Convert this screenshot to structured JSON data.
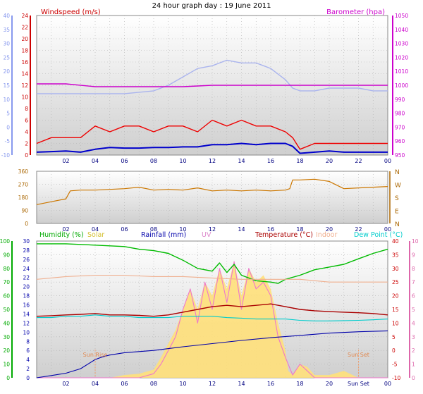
{
  "chart_data": {
    "title": "24 hour graph day : 19 June 2011",
    "x_ticks": [
      "02",
      "04",
      "06",
      "08",
      "10",
      "12",
      "14",
      "16",
      "18",
      "20",
      "22",
      "00"
    ],
    "x_ticks_bottom": [
      "02",
      "04",
      "06",
      "08",
      "10",
      "12",
      "14",
      "16",
      "18",
      "20",
      "Sun Set",
      "00"
    ],
    "x_range_hours": [
      0,
      24
    ],
    "panels": [
      {
        "id": "top",
        "type": "line",
        "legend": [
          {
            "label": "Windspeed (m/s)",
            "color": "#cc0000",
            "position": "left"
          },
          {
            "label": "Barometer (hpa)",
            "color": "#cc00cc",
            "position": "right"
          }
        ],
        "axes": {
          "far_left": {
            "color": "#8899ee",
            "ticks": [
              40,
              35,
              30,
              25,
              20,
              15,
              10,
              5,
              0,
              -5,
              -10
            ],
            "range": [
              -10,
              40
            ]
          },
          "left": {
            "color": "#cc0000",
            "ticks": [
              24,
              22,
              20,
              18,
              16,
              14,
              12,
              10,
              8,
              6,
              4,
              2,
              0
            ],
            "range": [
              0,
              24
            ]
          },
          "right": {
            "color": "#cc00cc",
            "ticks": [
              1050,
              1040,
              1030,
              1020,
              1010,
              1000,
              990,
              980,
              970,
              960,
              950
            ],
            "range": [
              950,
              1050
            ]
          }
        },
        "series": [
          {
            "color": "#aab4ee",
            "axis": "far_left",
            "x": [
              0,
              2,
              4,
              6,
              8,
              9,
              10,
              11,
              12,
              13,
              14,
              15,
              16,
              17,
              17.5,
              18,
              19,
              20,
              21,
              22,
              23,
              24
            ],
            "y": [
              12,
              12,
              12,
              12,
              13,
              15,
              18,
              21,
              22,
              24,
              23,
              23,
              21,
              17,
              14,
              13,
              13,
              14,
              14,
              14,
              13,
              13
            ]
          },
          {
            "color": "#cc00cc",
            "axis": "right",
            "x": [
              0,
              2,
              4,
              5,
              6,
              8,
              10,
              12,
              14,
              16,
              18,
              20,
              22,
              24
            ],
            "y": [
              1001,
              1001,
              999,
              999,
              999,
              999,
              999,
              1000,
              1000,
              1000,
              1000,
              1000,
              1000,
              1000
            ]
          },
          {
            "color": "#ee0000",
            "axis": "left",
            "x": [
              0,
              1,
              2,
              3,
              4,
              5,
              6,
              7,
              8,
              9,
              10,
              11,
              12,
              13,
              14,
              15,
              16,
              17,
              17.5,
              18,
              19,
              20,
              21,
              22,
              23,
              24
            ],
            "y": [
              2,
              3,
              3,
              3,
              5,
              4,
              5,
              5,
              4,
              5,
              5,
              4,
              6,
              5,
              6,
              5,
              5,
              4,
              3,
              1,
              2,
              2,
              2,
              2,
              2,
              2
            ]
          },
          {
            "color": "#0000cc",
            "axis": "left",
            "x": [
              0,
              1,
              2,
              3,
              4,
              5,
              6,
              7,
              8,
              9,
              10,
              11,
              12,
              13,
              14,
              15,
              16,
              17,
              17.5,
              18,
              19,
              20,
              21,
              22,
              23,
              24
            ],
            "y": [
              0.5,
              0.6,
              0.7,
              0.5,
              1.0,
              1.3,
              1.2,
              1.2,
              1.3,
              1.3,
              1.4,
              1.4,
              1.8,
              1.8,
              2.0,
              1.8,
              2.0,
              2.0,
              1.5,
              0.3,
              0.5,
              0.7,
              0.5,
              0.5,
              0.5,
              0.5
            ]
          }
        ]
      },
      {
        "id": "direction",
        "type": "line",
        "axes": {
          "left": {
            "color": "#aa6600",
            "ticks": [
              360,
              270,
              180,
              90,
              0
            ],
            "range": [
              0,
              360
            ]
          },
          "right_labels": [
            "N",
            "W",
            "S",
            "E",
            "N"
          ]
        },
        "series": [
          {
            "color": "#cc7700",
            "x": [
              0,
              1,
              2,
              2.3,
              3,
              4,
              5,
              6,
              7,
              8,
              9,
              10,
              11,
              12,
              13,
              14,
              15,
              16,
              17,
              17.3,
              17.5,
              18,
              19,
              20,
              21,
              22,
              23,
              24
            ],
            "y": [
              130,
              150,
              170,
              225,
              230,
              230,
              235,
              240,
              250,
              230,
              235,
              230,
              245,
              225,
              230,
              225,
              230,
              225,
              230,
              240,
              300,
              300,
              305,
              290,
              240,
              245,
              250,
              255
            ]
          }
        ]
      },
      {
        "id": "bottom",
        "type": "line",
        "legend": [
          {
            "label": "Humidity (%)",
            "color": "#00aa00"
          },
          {
            "label": "Solar",
            "color": "#d4c030"
          },
          {
            "label": "Rainfall (mm)",
            "color": "#0000aa"
          },
          {
            "label": "UV",
            "color": "#dd88cc"
          },
          {
            "label": "Temperature (°C)",
            "color": "#aa0000"
          },
          {
            "label": "Indoor",
            "color": "#f0b090"
          },
          {
            "label": "Dew Point (°C)",
            "color": "#00cccc"
          }
        ],
        "axes": {
          "humidity": {
            "color": "#00aa00",
            "ticks": [
              100,
              90,
              80,
              70,
              60,
              50,
              40,
              30,
              20,
              10,
              0
            ],
            "range": [
              0,
              100
            ]
          },
          "rainfall": {
            "color": "#0000aa",
            "ticks": [
              30,
              28,
              26,
              24,
              22,
              20,
              18,
              16,
              14,
              12,
              10,
              8,
              6,
              4,
              2,
              0
            ],
            "range": [
              0,
              30
            ]
          },
          "temperature": {
            "color": "#cc0000",
            "ticks": [
              40,
              35,
              30,
              25,
              20,
              15,
              10,
              5,
              0,
              -5,
              -10
            ],
            "range": [
              -10,
              40
            ]
          },
          "uv": {
            "color": "#dd66aa",
            "ticks": [
              10,
              9,
              8,
              7,
              6,
              5,
              4,
              3,
              2,
              1,
              0
            ],
            "range": [
              0,
              10
            ]
          }
        },
        "annotations": [
          {
            "label": "Sun Rise",
            "x": 4.0
          },
          {
            "label": "Sun Set",
            "x": 22.0
          }
        ],
        "series": [
          {
            "name": "Solar",
            "color": "#ffe07a",
            "axis": "uv",
            "kind": "area",
            "x": [
              0,
              5,
              6,
              7,
              8,
              8.5,
              9,
              9.5,
              10,
              10.5,
              11,
              11.5,
              12,
              12.5,
              13,
              13.5,
              14,
              14.5,
              15,
              15.5,
              16,
              16.5,
              17,
              17.2,
              17.5,
              18,
              18.5,
              19,
              20,
              21,
              22,
              24
            ],
            "y": [
              0,
              0,
              0.2,
              0.3,
              0.6,
              1.5,
              2.5,
              3.5,
              5,
              6.5,
              5,
              7,
              6,
              8,
              6.5,
              8.5,
              6,
              8,
              7,
              7.5,
              6.5,
              4,
              2,
              0.5,
              0.2,
              1,
              0.8,
              0.2,
              0.2,
              0.5,
              0,
              0
            ]
          },
          {
            "name": "UV",
            "color": "#ee77cc",
            "axis": "uv",
            "x": [
              0,
              7,
              8,
              8.5,
              9,
              9.5,
              10,
              10.5,
              11,
              11.5,
              12,
              12.5,
              13,
              13.5,
              14,
              14.5,
              15,
              15.5,
              16,
              16.5,
              17,
              17.5,
              18,
              18.5,
              19,
              24
            ],
            "y": [
              0,
              0,
              0.3,
              1,
              2,
              3,
              5,
              6.5,
              4,
              7,
              5,
              8,
              5.5,
              8.5,
              5,
              8,
              6.5,
              7,
              6,
              3,
              1.5,
              0.2,
              1,
              0.5,
              0,
              0
            ]
          },
          {
            "name": "Humidity",
            "color": "#00bb00",
            "axis": "humidity",
            "x": [
              0,
              2,
              4,
              6,
              7,
              8,
              9,
              10,
              11,
              12,
              12.5,
              13,
              13.5,
              14,
              15,
              16,
              16.5,
              17,
              18,
              19,
              20,
              21,
              22,
              23,
              24
            ],
            "y": [
              98,
              98,
              97,
              96,
              94,
              93,
              91,
              86,
              80,
              78,
              84,
              77,
              83,
              75,
              71,
              70,
              69,
              72,
              75,
              79,
              81,
              83,
              87,
              91,
              94
            ]
          },
          {
            "name": "Indoor",
            "color": "#f0b090",
            "axis": "temperature",
            "x": [
              0,
              2,
              4,
              6,
              8,
              10,
              12,
              14,
              16,
              18,
              20,
              22,
              24
            ],
            "y": [
              26,
              27,
              27.5,
              27.5,
              27,
              27,
              26.5,
              26,
              26,
              26,
              25,
              25,
              25
            ]
          },
          {
            "name": "Temperature",
            "color": "#aa0000",
            "axis": "temperature",
            "x": [
              0,
              1,
              2,
              3,
              4,
              5,
              6,
              7,
              8,
              9,
              10,
              11,
              12,
              13,
              14,
              15,
              16,
              17,
              18,
              19,
              20,
              21,
              22,
              23,
              24
            ],
            "y": [
              12.5,
              12.7,
              13,
              13.2,
              13.5,
              13,
              13,
              12.8,
              12.5,
              13,
              14,
              15,
              16,
              16.5,
              16,
              16.5,
              17,
              16,
              15,
              14.5,
              14.2,
              14,
              13.8,
              13.5,
              13
            ]
          },
          {
            "name": "Dew Point",
            "color": "#00cccc",
            "axis": "temperature",
            "x": [
              0,
              1,
              2,
              3,
              4,
              5,
              6,
              7,
              8,
              9,
              10,
              11,
              12,
              13,
              14,
              15,
              16,
              17,
              18,
              19,
              20,
              21,
              22,
              23,
              24
            ],
            "y": [
              12,
              12,
              12.5,
              12.5,
              13,
              12.5,
              12.5,
              12,
              12,
              12,
              12.5,
              12.5,
              12.5,
              12,
              11.8,
              11.5,
              11.5,
              11.5,
              11,
              10.8,
              10.8,
              10.9,
              11,
              11.2,
              11.5
            ]
          },
          {
            "name": "Rainfall",
            "color": "#0000aa",
            "axis": "rainfall",
            "x": [
              0,
              1,
              2,
              3,
              4,
              4.5,
              5,
              6,
              8,
              10,
              12,
              14,
              16,
              18,
              20,
              22,
              24
            ],
            "y": [
              0,
              0.5,
              1,
              2,
              4,
              4.6,
              5,
              5.5,
              6,
              6.8,
              7.5,
              8.2,
              8.8,
              9.3,
              9.8,
              10.1,
              10.3
            ]
          }
        ]
      }
    ]
  }
}
